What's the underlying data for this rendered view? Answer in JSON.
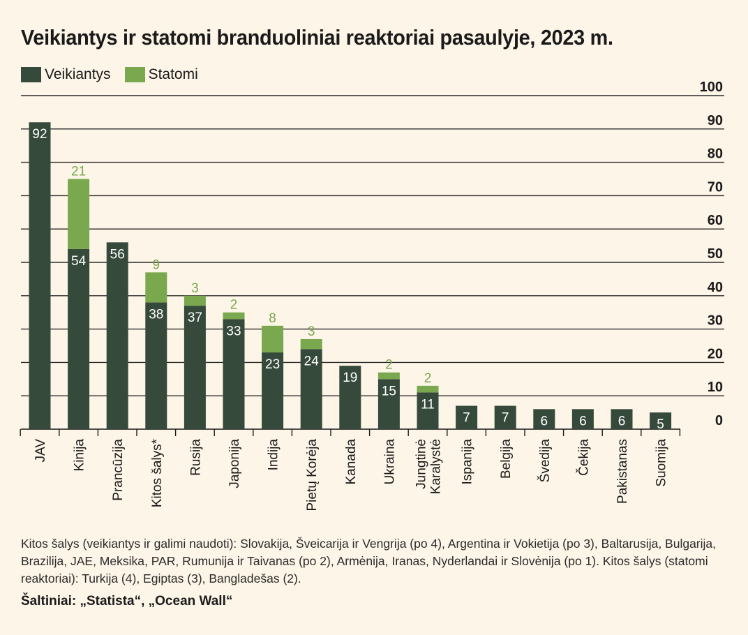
{
  "title": "Veikiantys ir statomi branduoliniai reaktoriai pasaulyje, 2023 m.",
  "colors": {
    "operating": "#364a3b",
    "building": "#7aa84f",
    "background": "#fdf5e7",
    "grid": "#2b2b2b"
  },
  "chart_data": {
    "type": "bar",
    "stacked": true,
    "title": "Veikiantys ir statomi branduoliniai reaktoriai pasaulyje, 2023 m.",
    "legend": [
      "Veikiantys",
      "Statomi"
    ],
    "legend_position": "top-left",
    "y_axis_position": "right",
    "ylim": [
      0,
      100
    ],
    "yticks": [
      0,
      10,
      20,
      30,
      40,
      50,
      60,
      70,
      80,
      90,
      100
    ],
    "grid": true,
    "categories": [
      "JAV",
      "Kinija",
      "Prancūzija",
      "Kitos šalys*",
      "Rusija",
      "Japonija",
      "Indija",
      "Pietų Korėja",
      "Kanada",
      "Ukraina",
      "Jungtinė Karalystė",
      "Ispanija",
      "Belgija",
      "Švedija",
      "Čekija",
      "Pakistanas",
      "Suomija"
    ],
    "category_lines": [
      [
        "JAV"
      ],
      [
        "Kinija"
      ],
      [
        "Prancūzija"
      ],
      [
        "Kitos šalys*"
      ],
      [
        "Rusija"
      ],
      [
        "Japonija"
      ],
      [
        "Indija"
      ],
      [
        "Pietų Korėja"
      ],
      [
        "Kanada"
      ],
      [
        "Ukraina"
      ],
      [
        "Jungtinė",
        "Karalystė"
      ],
      [
        "Ispanija"
      ],
      [
        "Belgija"
      ],
      [
        "Švedija"
      ],
      [
        "Čekija"
      ],
      [
        "Pakistanas"
      ],
      [
        "Suomija"
      ]
    ],
    "series": [
      {
        "name": "Veikiantys",
        "values": [
          92,
          54,
          56,
          38,
          37,
          33,
          23,
          24,
          19,
          15,
          11,
          7,
          7,
          6,
          6,
          6,
          5
        ]
      },
      {
        "name": "Statomi",
        "values": [
          0,
          21,
          0,
          9,
          3,
          2,
          8,
          3,
          0,
          2,
          2,
          0,
          0,
          0,
          0,
          0,
          0
        ]
      }
    ]
  },
  "note": "Kitos šalys (veikiantys ir galimi naudoti): Slovakija, Šveicarija ir Vengrija (po 4), Argentina ir Vokietija (po 3), Baltarusija, Bulgarija, Brazilija, JAE, Meksika, PAR, Rumunija ir Taivanas (po 2), Armėnija, Iranas, Nyderlandai ir Slovėnija (po 1). Kitos šalys (statomi reaktoriai): Turkija (4), Egiptas (3), Bangladešas (2).",
  "source": "Šaltiniai: „Statista“, „Ocean Wall“"
}
